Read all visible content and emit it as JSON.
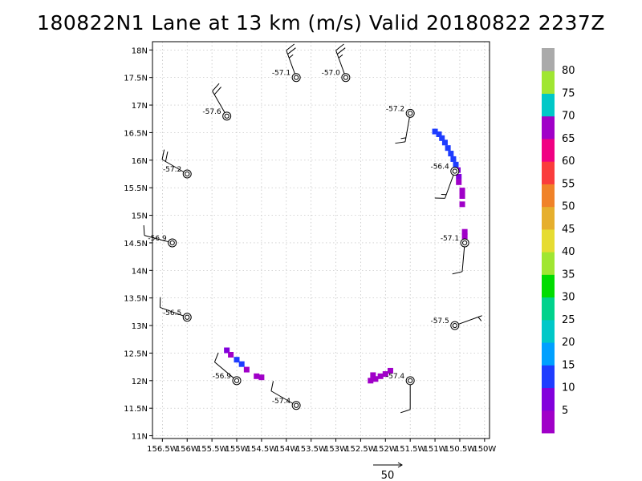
{
  "chart_data": {
    "type": "scatter",
    "title": "180822N1 Lane at 13 km (m/s) Valid 20180822 2237Z",
    "xlim": [
      156.7,
      149.9
    ],
    "ylim": [
      10.95,
      18.15
    ],
    "x_ticks": [
      {
        "v": 156.5,
        "label": "156.5W"
      },
      {
        "v": 156.0,
        "label": "156W"
      },
      {
        "v": 155.5,
        "label": "155.5W"
      },
      {
        "v": 155.0,
        "label": "155W"
      },
      {
        "v": 154.5,
        "label": "154.5W"
      },
      {
        "v": 154.0,
        "label": "154W"
      },
      {
        "v": 153.5,
        "label": "153.5W"
      },
      {
        "v": 153.0,
        "label": "153W"
      },
      {
        "v": 152.5,
        "label": "152.5W"
      },
      {
        "v": 152.0,
        "label": "152W"
      },
      {
        "v": 151.5,
        "label": "151.5W"
      },
      {
        "v": 151.0,
        "label": "151W"
      },
      {
        "v": 150.5,
        "label": "150.5W"
      },
      {
        "v": 150.0,
        "label": "150W"
      }
    ],
    "y_ticks": [
      {
        "v": 11.0,
        "label": "11N"
      },
      {
        "v": 11.5,
        "label": "11.5N"
      },
      {
        "v": 12.0,
        "label": "12N"
      },
      {
        "v": 12.5,
        "label": "12.5N"
      },
      {
        "v": 13.0,
        "label": "13N"
      },
      {
        "v": 13.5,
        "label": "13.5N"
      },
      {
        "v": 14.0,
        "label": "14N"
      },
      {
        "v": 14.5,
        "label": "14.5N"
      },
      {
        "v": 15.0,
        "label": "15N"
      },
      {
        "v": 15.5,
        "label": "15.5N"
      },
      {
        "v": 16.0,
        "label": "16N"
      },
      {
        "v": 16.5,
        "label": "16.5N"
      },
      {
        "v": 17.0,
        "label": "17N"
      },
      {
        "v": 17.5,
        "label": "17.5N"
      },
      {
        "v": 18.0,
        "label": "18N"
      }
    ],
    "grid": true,
    "stations": [
      {
        "lon": 153.8,
        "lat": 17.5,
        "temp": "-57.1",
        "dir": 340,
        "spd": 25
      },
      {
        "lon": 152.8,
        "lat": 17.5,
        "temp": "-57.0",
        "dir": 340,
        "spd": 25
      },
      {
        "lon": 155.2,
        "lat": 16.8,
        "temp": "-57.6",
        "dir": 330,
        "spd": 20
      },
      {
        "lon": 151.5,
        "lat": 16.85,
        "temp": "-57.2",
        "dir": 190,
        "spd": 15
      },
      {
        "lon": 156.0,
        "lat": 15.75,
        "temp": "-57.2",
        "dir": 300,
        "spd": 20
      },
      {
        "lon": 150.6,
        "lat": 15.8,
        "temp": "-56.4",
        "dir": 200,
        "spd": 15
      },
      {
        "lon": 156.3,
        "lat": 14.5,
        "temp": "-56.9",
        "dir": 285,
        "spd": 10
      },
      {
        "lon": 150.4,
        "lat": 14.5,
        "temp": "-57.1",
        "dir": 185,
        "spd": 10
      },
      {
        "lon": 156.0,
        "lat": 13.15,
        "temp": "-56.5",
        "dir": 290,
        "spd": 10
      },
      {
        "lon": 150.6,
        "lat": 13.0,
        "temp": "-57.5",
        "dir": 70,
        "spd": 5
      },
      {
        "lon": 155.0,
        "lat": 12.0,
        "temp": "-56.9",
        "dir": 310,
        "spd": 10
      },
      {
        "lon": 151.5,
        "lat": 12.0,
        "temp": "-57.4",
        "dir": 180,
        "spd": 10
      },
      {
        "lon": 153.8,
        "lat": 11.55,
        "temp": "-57.4",
        "dir": 300,
        "spd": 10
      }
    ],
    "obs_points": [
      {
        "lon": 151.0,
        "lat": 16.52,
        "v": 13
      },
      {
        "lon": 150.92,
        "lat": 16.47,
        "v": 13
      },
      {
        "lon": 150.86,
        "lat": 16.4,
        "v": 13
      },
      {
        "lon": 150.8,
        "lat": 16.32,
        "v": 12
      },
      {
        "lon": 150.74,
        "lat": 16.22,
        "v": 12
      },
      {
        "lon": 150.68,
        "lat": 16.12,
        "v": 12
      },
      {
        "lon": 150.63,
        "lat": 16.02,
        "v": 11
      },
      {
        "lon": 150.58,
        "lat": 15.92,
        "v": 10
      },
      {
        "lon": 150.54,
        "lat": 15.82,
        "v": 8
      },
      {
        "lon": 150.52,
        "lat": 15.7,
        "v": 5
      },
      {
        "lon": 150.52,
        "lat": 15.6,
        "v": 3
      },
      {
        "lon": 150.45,
        "lat": 15.45,
        "v": 2
      },
      {
        "lon": 150.45,
        "lat": 15.35,
        "v": 2
      },
      {
        "lon": 150.45,
        "lat": 15.2,
        "v": 2
      },
      {
        "lon": 150.4,
        "lat": 14.7,
        "v": 2
      },
      {
        "lon": 150.4,
        "lat": 14.62,
        "v": 2
      },
      {
        "lon": 155.2,
        "lat": 12.55,
        "v": 5
      },
      {
        "lon": 155.12,
        "lat": 12.47,
        "v": 4
      },
      {
        "lon": 155.0,
        "lat": 12.38,
        "v": 13
      },
      {
        "lon": 154.9,
        "lat": 12.3,
        "v": 14
      },
      {
        "lon": 154.8,
        "lat": 12.2,
        "v": 4
      },
      {
        "lon": 154.6,
        "lat": 12.08,
        "v": 3
      },
      {
        "lon": 154.5,
        "lat": 12.06,
        "v": 3
      },
      {
        "lon": 152.3,
        "lat": 12.0,
        "v": 2
      },
      {
        "lon": 152.2,
        "lat": 12.03,
        "v": 2
      },
      {
        "lon": 152.1,
        "lat": 12.08,
        "v": 3
      },
      {
        "lon": 152.0,
        "lat": 12.12,
        "v": 2
      },
      {
        "lon": 151.9,
        "lat": 12.18,
        "v": 3
      },
      {
        "lon": 152.25,
        "lat": 12.1,
        "v": 4
      }
    ],
    "colorbar": {
      "bounds": [
        0,
        5,
        10,
        15,
        20,
        25,
        30,
        35,
        40,
        45,
        50,
        55,
        60,
        65,
        70,
        75,
        80,
        85
      ],
      "labels": [
        "5",
        "10",
        "15",
        "20",
        "25",
        "30",
        "35",
        "40",
        "45",
        "50",
        "55",
        "60",
        "65",
        "70",
        "75",
        "80"
      ],
      "colors": [
        "#a000c8",
        "#8200dc",
        "#1e3cff",
        "#00a0ff",
        "#00c8c8",
        "#00d28c",
        "#00dc00",
        "#a0e632",
        "#e6dc32",
        "#e6af2d",
        "#f08228",
        "#fa3c3c",
        "#f00082",
        "#a000c8",
        "#00c8c8",
        "#a0e632",
        "#aaaaaa"
      ]
    },
    "reference": {
      "value": 50,
      "label": "50"
    }
  }
}
